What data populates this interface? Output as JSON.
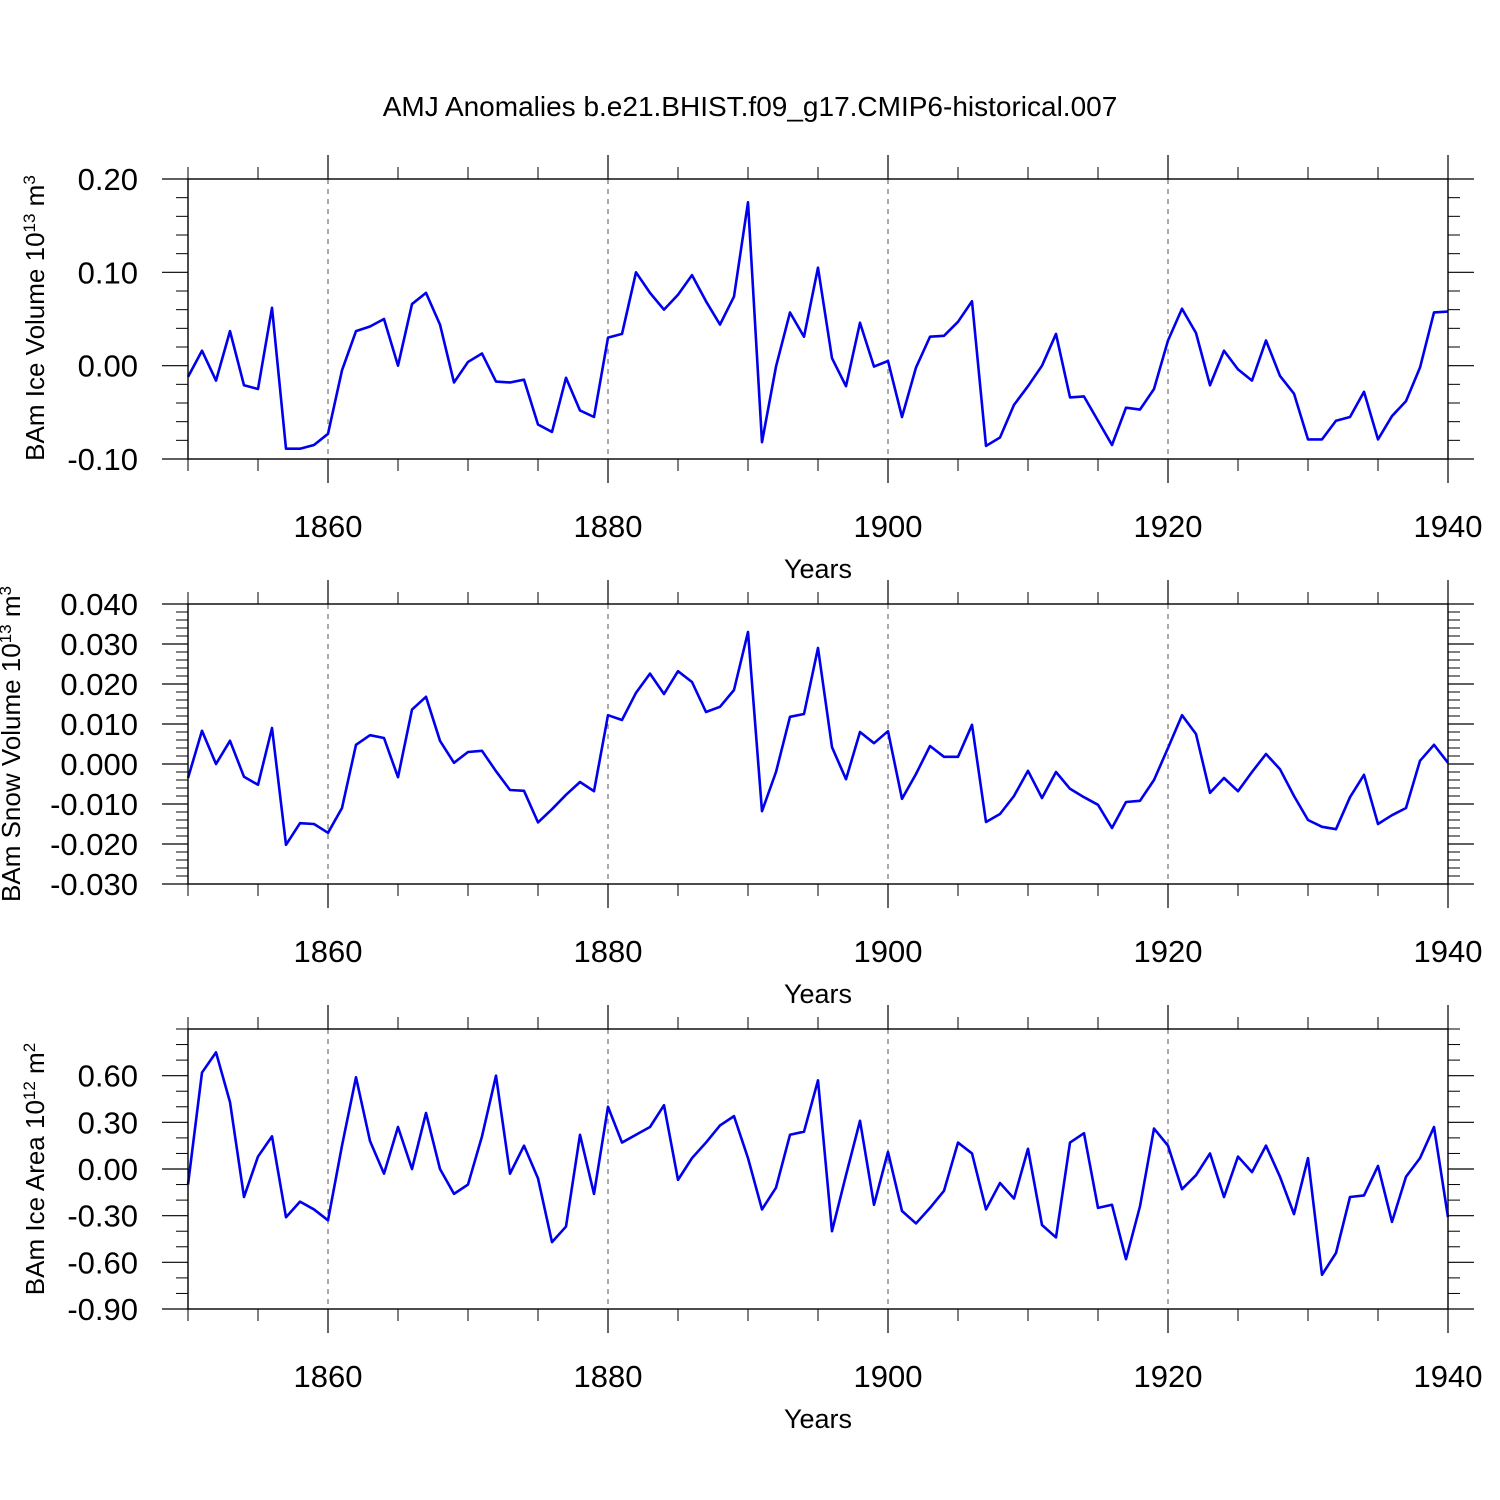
{
  "figure_title": "AMJ Anomalies b.e21.BHIST.f09_g17.CMIP6-historical.007",
  "colors": {
    "line": "#0000ee",
    "axis": "#000000",
    "grid": "#555555"
  },
  "chart_data": [
    {
      "type": "line",
      "ylabel_main": "BAm Ice Volume 10",
      "ylabel_exp": "13",
      "ylabel_unit": " m",
      "ylabel_unit_exp": "3",
      "xlabel": "Years",
      "xlim": [
        1850,
        1940
      ],
      "ylim": [
        -0.1,
        0.2
      ],
      "yticks": [
        -0.1,
        0.0,
        0.1,
        0.2
      ],
      "ytick_labels": [
        "-0.10",
        "0.00",
        "0.10",
        "0.20"
      ],
      "yminor_step": 0.02,
      "xticks": [
        1860,
        1880,
        1900,
        1920,
        1940
      ],
      "xtick_labels": [
        "1860",
        "1880",
        "1900",
        "1920",
        "1940"
      ],
      "x_start": 1850,
      "values": [
        -0.012,
        0.016,
        -0.016,
        0.037,
        -0.021,
        -0.025,
        0.062,
        -0.089,
        -0.089,
        -0.085,
        -0.073,
        -0.005,
        0.037,
        0.042,
        0.05,
        0.0,
        0.066,
        0.078,
        0.044,
        -0.018,
        0.004,
        0.013,
        -0.017,
        -0.018,
        -0.015,
        -0.063,
        -0.071,
        -0.013,
        -0.048,
        -0.055,
        0.03,
        0.034,
        0.1,
        0.078,
        0.06,
        0.076,
        0.097,
        0.069,
        0.044,
        0.074,
        0.175,
        -0.082,
        -0.001,
        0.057,
        0.031,
        0.105,
        0.008,
        -0.022,
        0.046,
        -0.001,
        0.005,
        -0.055,
        -0.002,
        0.031,
        0.032,
        0.047,
        0.069,
        -0.086,
        -0.077,
        -0.042,
        -0.022,
        0.0,
        0.034,
        -0.034,
        -0.033,
        -0.059,
        -0.085,
        -0.045,
        -0.047,
        -0.025,
        0.027,
        0.061,
        0.035,
        -0.021,
        0.016,
        -0.004,
        -0.016,
        0.027,
        -0.011,
        -0.03,
        -0.079,
        -0.079,
        -0.059,
        -0.055,
        -0.028,
        -0.079,
        -0.054,
        -0.038,
        -0.002,
        0.057,
        0.058
      ]
    },
    {
      "type": "line",
      "ylabel_main": "BAm Snow Volume 10",
      "ylabel_exp": "13",
      "ylabel_unit": " m",
      "ylabel_unit_exp": "3",
      "xlabel": "Years",
      "xlim": [
        1850,
        1940
      ],
      "ylim": [
        -0.03,
        0.04
      ],
      "yticks": [
        -0.03,
        -0.02,
        -0.01,
        0.0,
        0.01,
        0.02,
        0.03,
        0.04
      ],
      "ytick_labels": [
        "-0.030",
        "-0.020",
        "-0.010",
        "0.000",
        "0.010",
        "0.020",
        "0.030",
        "0.040"
      ],
      "yminor_step": 0.002,
      "xticks": [
        1860,
        1880,
        1900,
        1920,
        1940
      ],
      "xtick_labels": [
        "1860",
        "1880",
        "1900",
        "1920",
        "1940"
      ],
      "x_start": 1850,
      "values": [
        -0.0035,
        0.0083,
        0.0,
        0.0058,
        -0.0032,
        -0.0052,
        0.009,
        -0.0202,
        -0.0148,
        -0.015,
        -0.0172,
        -0.011,
        0.0048,
        0.0072,
        0.0065,
        -0.0033,
        0.0136,
        0.0168,
        0.0058,
        0.0003,
        0.003,
        0.0033,
        -0.0018,
        -0.0065,
        -0.0067,
        -0.0146,
        -0.0113,
        -0.0077,
        -0.0045,
        -0.0068,
        0.0122,
        0.011,
        0.0178,
        0.0226,
        0.0175,
        0.0232,
        0.0205,
        0.013,
        0.0143,
        0.0185,
        0.033,
        -0.0118,
        -0.002,
        0.0118,
        0.0125,
        0.029,
        0.0042,
        -0.0038,
        0.008,
        0.0052,
        0.0082,
        -0.0087,
        -0.0025,
        0.0045,
        0.0018,
        0.0018,
        0.0098,
        -0.0145,
        -0.0125,
        -0.008,
        -0.0017,
        -0.0085,
        -0.002,
        -0.0062,
        -0.0083,
        -0.0102,
        -0.016,
        -0.0095,
        -0.0092,
        -0.004,
        0.004,
        0.0122,
        0.0075,
        -0.0072,
        -0.0035,
        -0.0068,
        -0.002,
        0.0025,
        -0.0013,
        -0.008,
        -0.014,
        -0.0157,
        -0.0163,
        -0.0083,
        -0.0027,
        -0.015,
        -0.0128,
        -0.011,
        0.0008,
        0.0048,
        0.0003
      ]
    },
    {
      "type": "line",
      "ylabel_main": "BAm Ice Area 10",
      "ylabel_exp": "12",
      "ylabel_unit": " m",
      "ylabel_unit_exp": "2",
      "xlabel": "Years",
      "xlim": [
        1850,
        1940
      ],
      "ylim": [
        -0.9,
        0.9
      ],
      "yticks": [
        -0.9,
        -0.6,
        -0.3,
        0.0,
        0.3,
        0.6
      ],
      "ytick_labels": [
        "-0.90",
        "-0.60",
        "-0.30",
        "0.00",
        "0.30",
        "0.60"
      ],
      "yminor_step": 0.1,
      "xticks": [
        1860,
        1880,
        1900,
        1920,
        1940
      ],
      "xtick_labels": [
        "1860",
        "1880",
        "1900",
        "1920",
        "1940"
      ],
      "x_start": 1850,
      "values": [
        -0.1,
        0.62,
        0.75,
        0.43,
        -0.18,
        0.08,
        0.21,
        -0.31,
        -0.21,
        -0.26,
        -0.33,
        0.15,
        0.59,
        0.18,
        -0.03,
        0.27,
        0.0,
        0.36,
        0.0,
        -0.16,
        -0.1,
        0.21,
        0.6,
        -0.03,
        0.15,
        -0.06,
        -0.47,
        -0.37,
        0.22,
        -0.16,
        0.4,
        0.17,
        0.22,
        0.27,
        0.41,
        -0.07,
        0.07,
        0.17,
        0.28,
        0.34,
        0.07,
        -0.26,
        -0.12,
        0.22,
        0.24,
        0.57,
        -0.4,
        -0.04,
        0.31,
        -0.23,
        0.11,
        -0.27,
        -0.35,
        -0.25,
        -0.14,
        0.17,
        0.1,
        -0.26,
        -0.09,
        -0.19,
        0.13,
        -0.36,
        -0.44,
        0.17,
        0.23,
        -0.25,
        -0.23,
        -0.58,
        -0.24,
        0.26,
        0.15,
        -0.13,
        -0.04,
        0.1,
        -0.18,
        0.08,
        -0.02,
        0.15,
        -0.05,
        -0.29,
        0.07,
        -0.68,
        -0.54,
        -0.18,
        -0.17,
        0.02,
        -0.34,
        -0.05,
        0.07,
        0.27,
        -0.31
      ]
    }
  ]
}
